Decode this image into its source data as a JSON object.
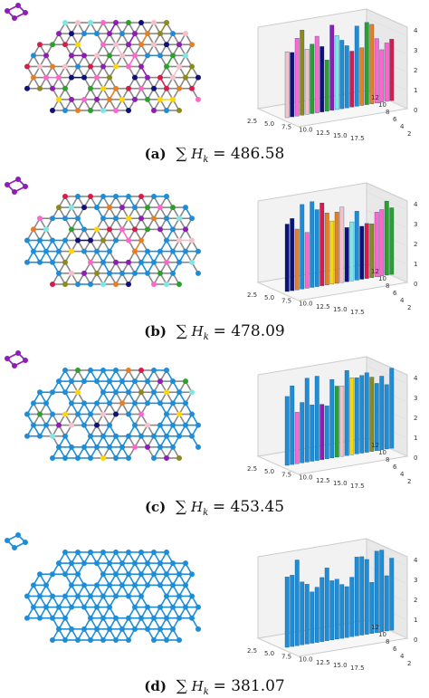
{
  "panels": [
    {
      "label": "(a)",
      "expr": "H",
      "sub": "k",
      "value": "= 486.58",
      "colored": 0.92
    },
    {
      "label": "(b)",
      "expr": "H",
      "sub": "k",
      "value": "= 478.09",
      "colored": 0.55
    },
    {
      "label": "(c)",
      "expr": "H",
      "sub": "k",
      "value": "= 453.45",
      "colored": 0.25
    },
    {
      "label": "(d)",
      "expr": "H",
      "sub": "k",
      "value": "= 381.07",
      "colored": 0.0
    }
  ],
  "axis3d": {
    "x_ticks": [
      "2.5",
      "5.0",
      "7.5",
      "10.0",
      "12.5",
      "15.0",
      "17.5"
    ],
    "y_ticks": [
      "2",
      "4",
      "6",
      "8",
      "10",
      "12"
    ],
    "z_ticks": [
      "0",
      "1",
      "2",
      "3",
      "4"
    ]
  },
  "colors": {
    "main": "#1f8dd6",
    "pink": "#f6c0cb",
    "crimson": "#d81b4a",
    "purple": "#8e1cb5",
    "navy": "#10107a",
    "olive": "#8c8a1e",
    "cyan": "#7fe6e6"
  }
}
